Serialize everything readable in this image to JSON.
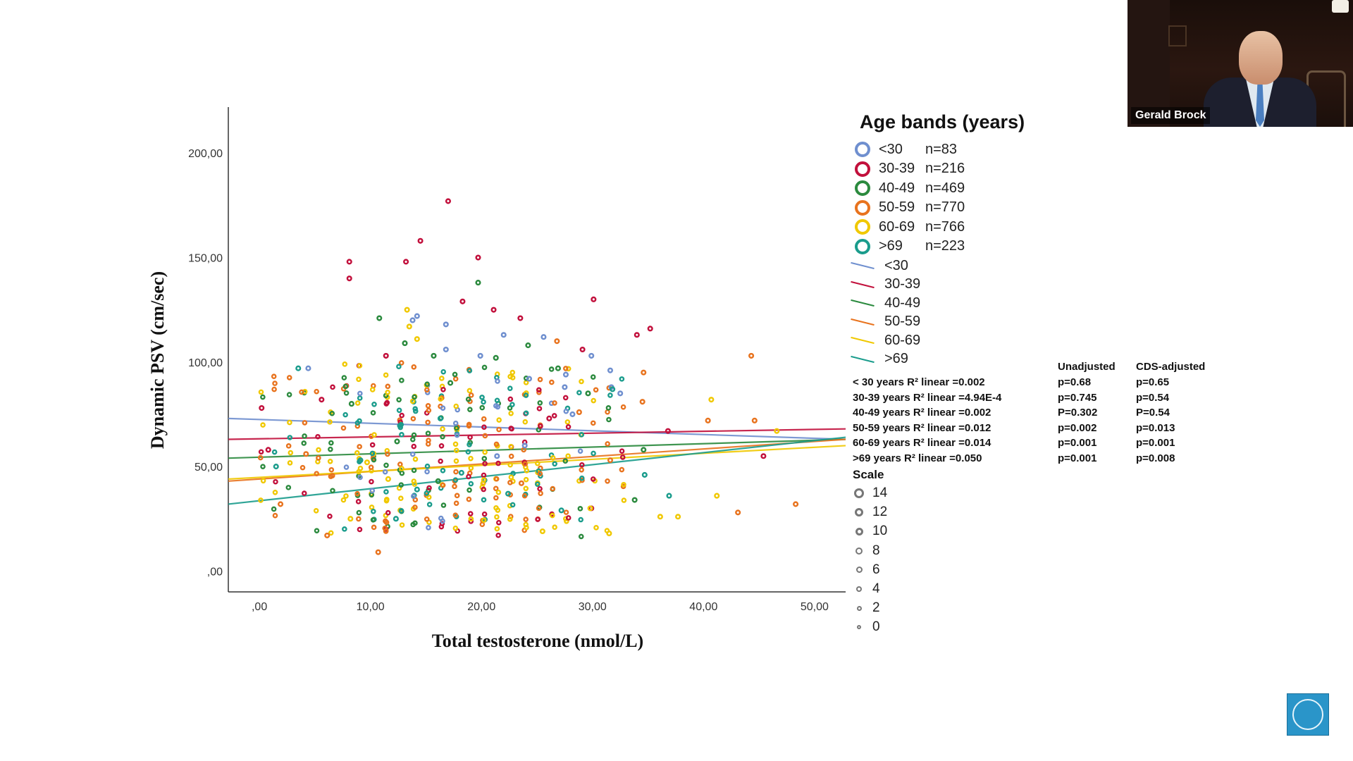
{
  "chart_data": {
    "type": "scatter",
    "xlabel": "Total testosterone (nmol/L)",
    "ylabel": "Dynamic PSV (cm/sec)",
    "xlim": [
      -2.8,
      52.8
    ],
    "ylim": [
      -10,
      222
    ],
    "x_ticks": [
      ",00",
      "10,00",
      "20,00",
      "30,00",
      "40,00",
      "50,00"
    ],
    "y_ticks": [
      ",00",
      "50,00",
      "100,00",
      "150,00",
      "200,00"
    ],
    "legend_title": "Age bands (years)",
    "legend_placement": "right",
    "series": [
      {
        "name": "<30",
        "n_label": "n=83",
        "color": "#6f8fcf",
        "fit": {
          "x0": -2.8,
          "y0": 73,
          "x1": 52.8,
          "y1": 63
        },
        "points": [
          [
            4.4,
            97
          ],
          [
            13.8,
            120
          ],
          [
            14.2,
            122
          ],
          [
            16.8,
            106
          ],
          [
            16.8,
            118
          ],
          [
            19.9,
            103
          ],
          [
            22,
            113
          ],
          [
            24.3,
            92
          ],
          [
            25.6,
            112
          ],
          [
            27.5,
            88
          ],
          [
            27.6,
            94
          ],
          [
            28.2,
            75
          ],
          [
            29.9,
            103
          ],
          [
            31.6,
            96
          ],
          [
            31.7,
            88
          ],
          [
            32.5,
            85
          ],
          [
            23.9,
            60
          ],
          [
            21.4,
            55
          ]
        ]
      },
      {
        "name": "30-39",
        "n_label": "n=216",
        "color": "#c2103c",
        "fit": {
          "x0": -2.8,
          "y0": 63,
          "x1": 52.8,
          "y1": 68
        },
        "points": [
          [
            0.2,
            78
          ],
          [
            0.8,
            58
          ],
          [
            8.1,
            148
          ],
          [
            8.1,
            140
          ],
          [
            13.2,
            148
          ],
          [
            14.5,
            158
          ],
          [
            17,
            177
          ],
          [
            18.3,
            129
          ],
          [
            19.7,
            150
          ],
          [
            21.1,
            125
          ],
          [
            23.5,
            121
          ],
          [
            30.1,
            130
          ],
          [
            29.1,
            106
          ],
          [
            34,
            113
          ],
          [
            35.2,
            116
          ],
          [
            36.8,
            67
          ],
          [
            45.4,
            55
          ],
          [
            5.6,
            82
          ],
          [
            11.4,
            103
          ],
          [
            26.1,
            73
          ],
          [
            29.9,
            30
          ]
        ]
      },
      {
        "name": "40-49",
        "n_label": "n=469",
        "color": "#2b8a3e",
        "fit": {
          "x0": -2.8,
          "y0": 54,
          "x1": 52.8,
          "y1": 63
        },
        "points": [
          [
            19.7,
            138
          ],
          [
            10.8,
            121
          ],
          [
            13.1,
            109
          ],
          [
            15.7,
            103
          ],
          [
            17.2,
            90
          ],
          [
            21.3,
            102
          ],
          [
            24.2,
            108
          ],
          [
            26.9,
            97
          ],
          [
            29.6,
            85
          ],
          [
            33.8,
            34
          ],
          [
            34.6,
            58
          ],
          [
            8.3,
            80
          ],
          [
            12.4,
            62
          ],
          [
            16.1,
            43
          ]
        ]
      },
      {
        "name": "50-59",
        "n_label": "n=770",
        "color": "#e8731e",
        "fit": {
          "x0": -2.8,
          "y0": 43,
          "x1": 52.8,
          "y1": 63
        },
        "points": [
          [
            10.7,
            9
          ],
          [
            1.9,
            32
          ],
          [
            6.1,
            17
          ],
          [
            34.6,
            95
          ],
          [
            34.5,
            81
          ],
          [
            40.4,
            72
          ],
          [
            44.6,
            72
          ],
          [
            44.3,
            103
          ],
          [
            43.1,
            28
          ],
          [
            48.3,
            32
          ],
          [
            31.6,
            53
          ],
          [
            26.8,
            110
          ],
          [
            28.8,
            76
          ],
          [
            23.6,
            42
          ],
          [
            4.2,
            56
          ]
        ]
      },
      {
        "name": "60-69",
        "n_label": "n=766",
        "color": "#f0c800",
        "fit": {
          "x0": -2.8,
          "y0": 44,
          "x1": 52.8,
          "y1": 60
        },
        "points": [
          [
            13.3,
            125
          ],
          [
            13.5,
            117
          ],
          [
            14.2,
            111
          ],
          [
            40.7,
            82
          ],
          [
            41.2,
            36
          ],
          [
            36.1,
            26
          ],
          [
            37.7,
            26
          ],
          [
            46.6,
            67
          ],
          [
            29.8,
            30
          ],
          [
            31.5,
            18
          ],
          [
            25.5,
            19
          ],
          [
            8.2,
            25
          ],
          [
            9.7,
            52
          ],
          [
            11.6,
            44
          ]
        ]
      },
      {
        "name": ">69",
        "n_label": "n=223",
        "color": "#1a9c8c",
        "fit": {
          "x0": -2.8,
          "y0": 32,
          "x1": 52.8,
          "y1": 64
        },
        "points": [
          [
            3.5,
            97
          ],
          [
            1.5,
            50
          ],
          [
            9.1,
            53
          ],
          [
            14.2,
            39
          ],
          [
            18.2,
            47
          ],
          [
            22.4,
            37
          ],
          [
            27.2,
            29
          ],
          [
            31.8,
            87
          ],
          [
            34.7,
            46
          ],
          [
            36.9,
            36
          ],
          [
            12.3,
            25
          ],
          [
            16.3,
            73
          ]
        ]
      }
    ],
    "line_legend": [
      "<30",
      "30-39",
      "40-49",
      "50-59",
      "60-69",
      ">69"
    ],
    "r_squared": [
      "< 30 years R² linear =0.002",
      "30-39 years R² linear =4.94E-4",
      "40-49 years R² linear =0.002",
      "50-59 years R² linear =0.012",
      "60-69 years R² linear =0.014",
      ">69 years R² linear =0.050"
    ],
    "p_headers": {
      "unadjusted": "Unadjusted",
      "adjusted": "CDS-adjusted"
    },
    "p_unadjusted": [
      "p=0.68",
      "p=0.745",
      "P=0.302",
      "p=0.002",
      "p=0.001",
      "p=0.001"
    ],
    "p_adjusted": [
      "p=0.65",
      "p=0.54",
      "P=0.54",
      "p=0.013",
      "p=0.001",
      "p=0.008"
    ],
    "scale": {
      "title": "Scale",
      "values": [
        "14",
        "12",
        "10",
        "8",
        "6",
        "4",
        "2",
        "0"
      ]
    }
  },
  "video": {
    "speaker_name": "Gerald Brock"
  },
  "logo": {
    "name": "issm-logo"
  }
}
